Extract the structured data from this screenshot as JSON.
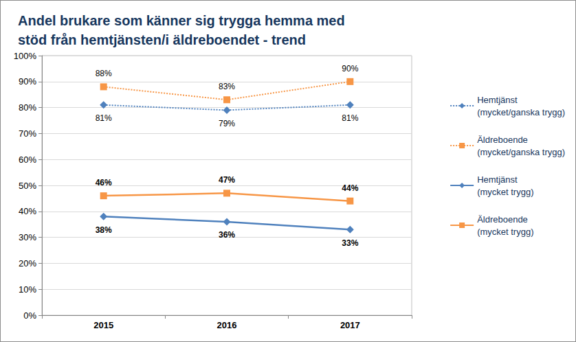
{
  "chart_data": {
    "type": "line",
    "title": "Andel brukare som känner sig trygga hemma med\nstöd från hemtjänsten/i äldreboendet - trend",
    "categories": [
      "2015",
      "2016",
      "2017"
    ],
    "ylim": [
      0,
      100
    ],
    "yticks": [
      {
        "value": 0,
        "label": "0%"
      },
      {
        "value": 10,
        "label": "10%"
      },
      {
        "value": 20,
        "label": "20%"
      },
      {
        "value": 30,
        "label": "30%"
      },
      {
        "value": 40,
        "label": "40%"
      },
      {
        "value": 50,
        "label": "50%"
      },
      {
        "value": 60,
        "label": "60%"
      },
      {
        "value": 70,
        "label": "70%"
      },
      {
        "value": 80,
        "label": "80%"
      },
      {
        "value": 90,
        "label": "90%"
      },
      {
        "value": 100,
        "label": "100%"
      }
    ],
    "grid": true,
    "legend": "right",
    "data_labels": true,
    "series": [
      {
        "name": "Hemtjänst\n(mycket/ganska trygg)",
        "color": "#4f81bd",
        "marker": "diamond",
        "line_style": "dotted",
        "values": [
          81,
          79,
          81
        ],
        "value_labels": [
          "81%",
          "79%",
          "81%"
        ]
      },
      {
        "name": "Äldreboende\n(mycket/ganska trygg)",
        "color": "#f79646",
        "marker": "square",
        "line_style": "dotted",
        "values": [
          88,
          83,
          90
        ],
        "value_labels": [
          "88%",
          "83%",
          "90%"
        ]
      },
      {
        "name": "Hemtjänst\n(mycket trygg)",
        "color": "#4f81bd",
        "marker": "diamond",
        "line_style": "solid",
        "values": [
          38,
          36,
          33
        ],
        "value_labels": [
          "38%",
          "36%",
          "33%"
        ]
      },
      {
        "name": "Äldreboende\n(mycket trygg)",
        "color": "#f79646",
        "marker": "square",
        "line_style": "solid",
        "values": [
          46,
          47,
          44
        ],
        "value_labels": [
          "46%",
          "47%",
          "44%"
        ]
      }
    ]
  }
}
